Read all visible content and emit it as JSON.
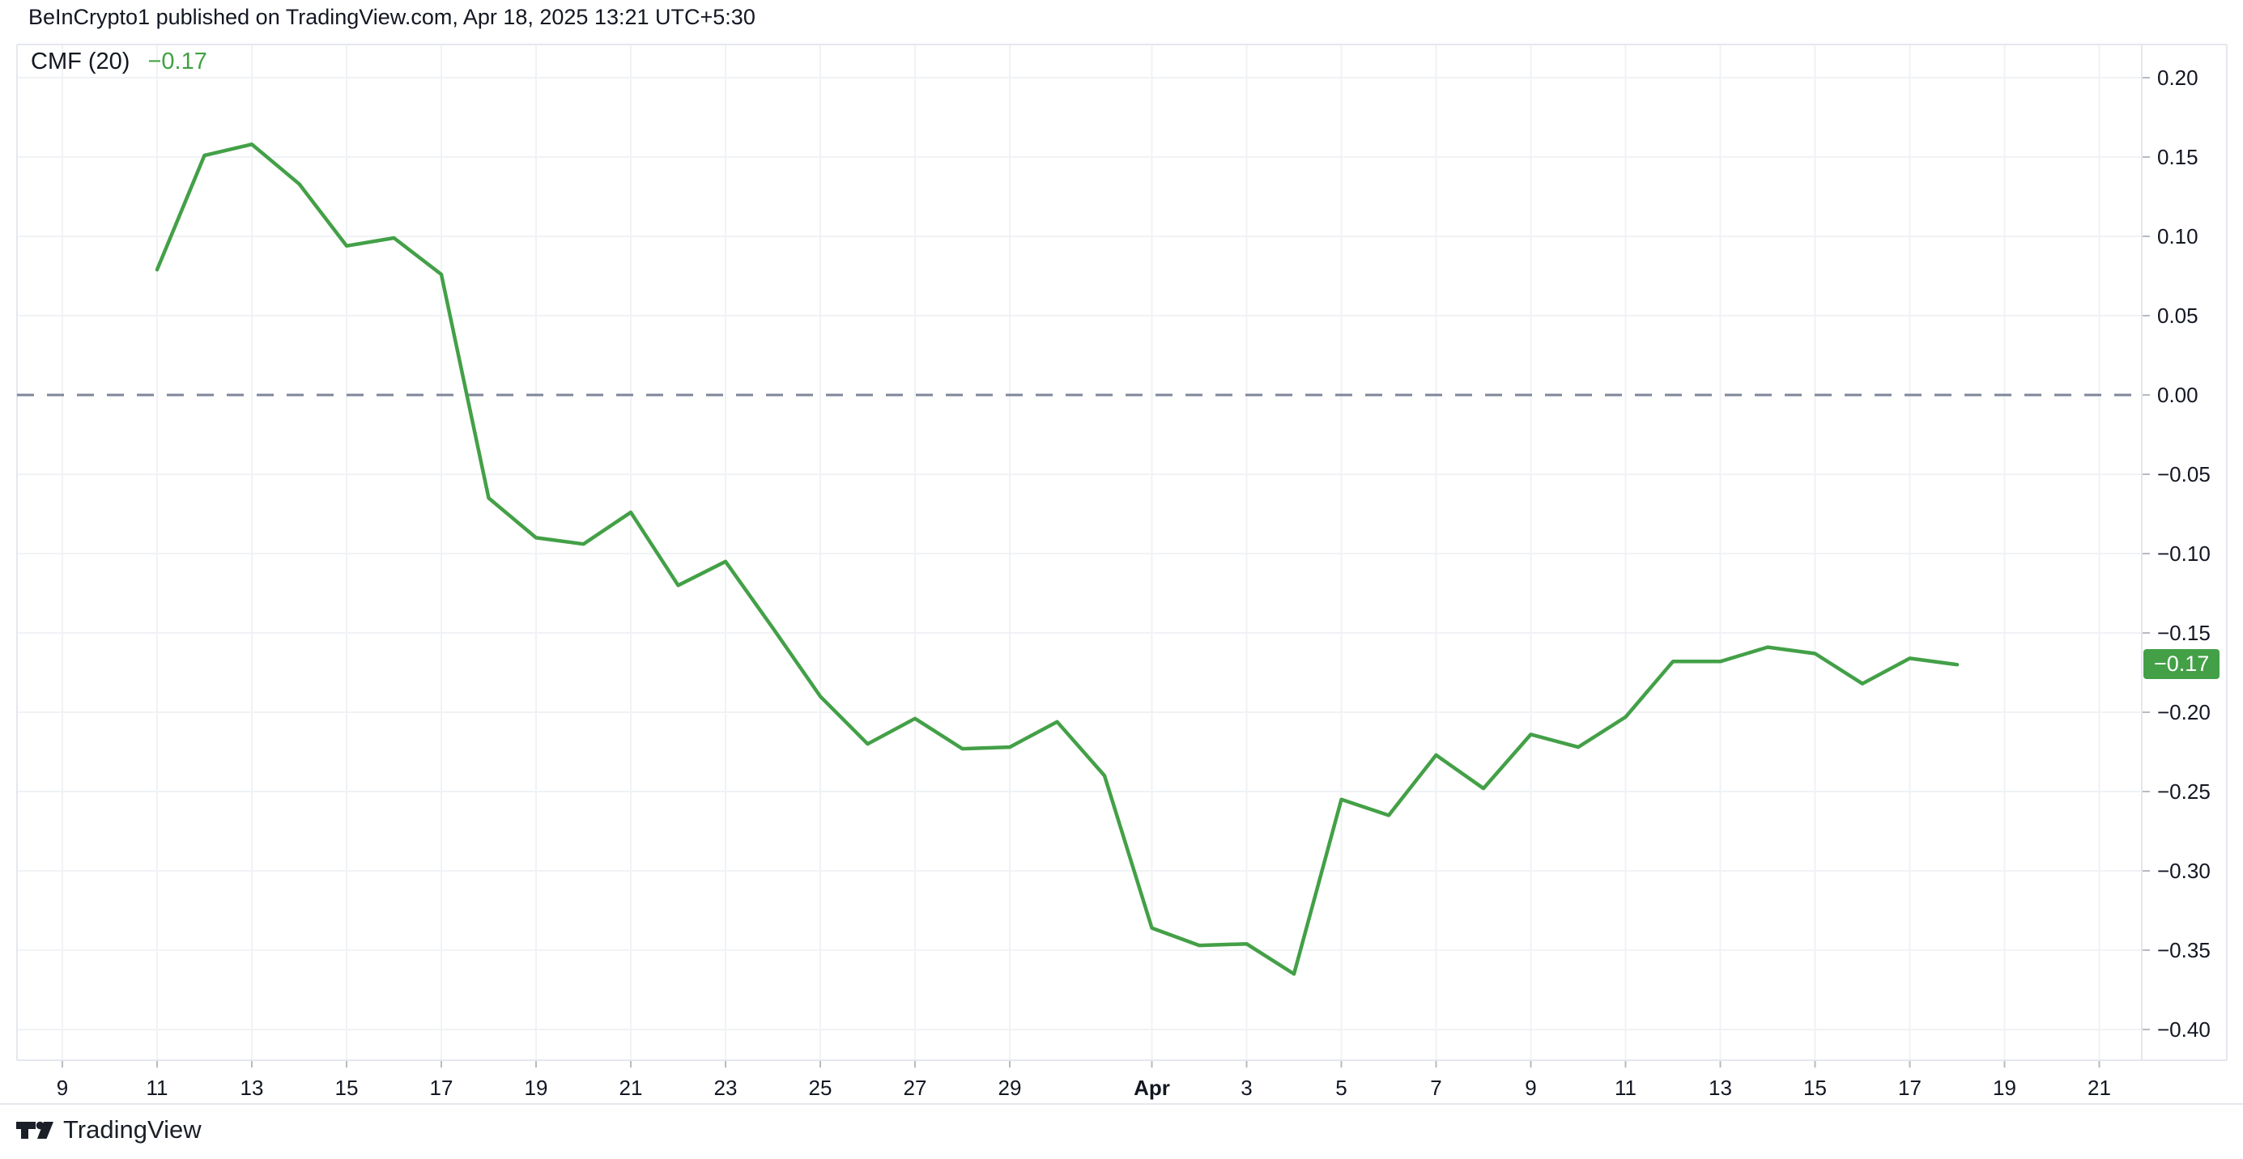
{
  "header": {
    "title": "BeInCrypto1 published on TradingView.com, Apr 18, 2025 13:21 UTC+5:30"
  },
  "legend": {
    "indicator": "CMF (20)",
    "value": "−0.17"
  },
  "price_scale": {
    "badge_label": "−0.17",
    "badge_value": -0.17,
    "y_ticks": [
      {
        "v": 0.2,
        "label": "0.20"
      },
      {
        "v": 0.15,
        "label": "0.15"
      },
      {
        "v": 0.1,
        "label": "0.10"
      },
      {
        "v": 0.05,
        "label": "0.05"
      },
      {
        "v": 0.0,
        "label": "0.00"
      },
      {
        "v": -0.05,
        "label": "−0.05"
      },
      {
        "v": -0.1,
        "label": "−0.10"
      },
      {
        "v": -0.15,
        "label": "−0.15"
      },
      {
        "v": -0.2,
        "label": "−0.20"
      },
      {
        "v": -0.25,
        "label": "−0.25"
      },
      {
        "v": -0.3,
        "label": "−0.30"
      },
      {
        "v": -0.35,
        "label": "−0.35"
      },
      {
        "v": -0.4,
        "label": "−0.40"
      }
    ]
  },
  "time_scale": {
    "x_ticks": [
      {
        "label": "9",
        "day_offset": -2
      },
      {
        "label": "11",
        "day_offset": 0
      },
      {
        "label": "13",
        "day_offset": 2
      },
      {
        "label": "15",
        "day_offset": 4
      },
      {
        "label": "17",
        "day_offset": 6
      },
      {
        "label": "19",
        "day_offset": 8
      },
      {
        "label": "21",
        "day_offset": 10
      },
      {
        "label": "23",
        "day_offset": 12
      },
      {
        "label": "25",
        "day_offset": 14
      },
      {
        "label": "27",
        "day_offset": 16
      },
      {
        "label": "29",
        "day_offset": 18
      },
      {
        "label": "Apr",
        "day_offset": 21,
        "bold": true
      },
      {
        "label": "3",
        "day_offset": 23
      },
      {
        "label": "5",
        "day_offset": 25
      },
      {
        "label": "7",
        "day_offset": 27
      },
      {
        "label": "9",
        "day_offset": 29
      },
      {
        "label": "11",
        "day_offset": 31
      },
      {
        "label": "13",
        "day_offset": 33
      },
      {
        "label": "15",
        "day_offset": 35
      },
      {
        "label": "17",
        "day_offset": 37
      },
      {
        "label": "19",
        "day_offset": 39
      },
      {
        "label": "21",
        "day_offset": 41
      }
    ]
  },
  "footer": {
    "brand": "TradingView"
  },
  "colors": {
    "accent_green": "#43a047",
    "legend_value_green": "#3fa142",
    "text_dark": "#131722",
    "grid": "#f0f2f5",
    "pane_border": "#e4e7ed",
    "zero_line": "#7e8698",
    "tick_mark": "#b6bac3",
    "badge_text": "#ffffff",
    "background": "#ffffff"
  },
  "chart_data": {
    "type": "line",
    "title": "CMF (20)",
    "series_name": "CMF (20)",
    "legend_position": "top-left",
    "grid": true,
    "zero_line": {
      "value": 0,
      "style": "dashed"
    },
    "ylim": [
      -0.42,
      0.22
    ],
    "xlabel": "",
    "ylabel": "",
    "last_value": -0.17,
    "x": [
      "Mar 11",
      "Mar 12",
      "Mar 13",
      "Mar 14",
      "Mar 15",
      "Mar 16",
      "Mar 17",
      "Mar 18",
      "Mar 19",
      "Mar 20",
      "Mar 21",
      "Mar 22",
      "Mar 23",
      "Mar 24",
      "Mar 25",
      "Mar 26",
      "Mar 27",
      "Mar 28",
      "Mar 29",
      "Mar 30",
      "Mar 31",
      "Apr 1",
      "Apr 2",
      "Apr 3",
      "Apr 4",
      "Apr 5",
      "Apr 6",
      "Apr 7",
      "Apr 8",
      "Apr 9",
      "Apr 10",
      "Apr 11",
      "Apr 12",
      "Apr 13",
      "Apr 14",
      "Apr 15",
      "Apr 16",
      "Apr 17",
      "Apr 18"
    ],
    "values": [
      0.079,
      0.151,
      0.158,
      0.133,
      0.094,
      0.099,
      0.076,
      -0.065,
      -0.09,
      -0.094,
      -0.074,
      -0.12,
      -0.105,
      -0.147,
      -0.19,
      -0.22,
      -0.204,
      -0.223,
      -0.222,
      -0.206,
      -0.24,
      -0.336,
      -0.347,
      -0.346,
      -0.365,
      -0.255,
      -0.265,
      -0.227,
      -0.248,
      -0.214,
      -0.222,
      -0.203,
      -0.168,
      -0.168,
      -0.159,
      -0.163,
      -0.182,
      -0.166,
      -0.17
    ]
  }
}
